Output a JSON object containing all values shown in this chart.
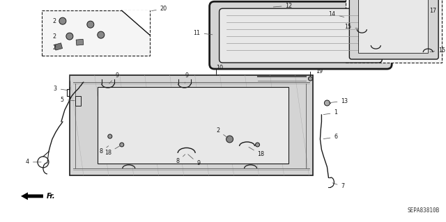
{
  "bg_color": "#ffffff",
  "line_color": "#1a1a1a",
  "part_number": "SEPA83810B",
  "gray_fill": "#d4d4d4",
  "light_gray": "#e8e8e8",
  "mid_gray": "#c0c0c0"
}
